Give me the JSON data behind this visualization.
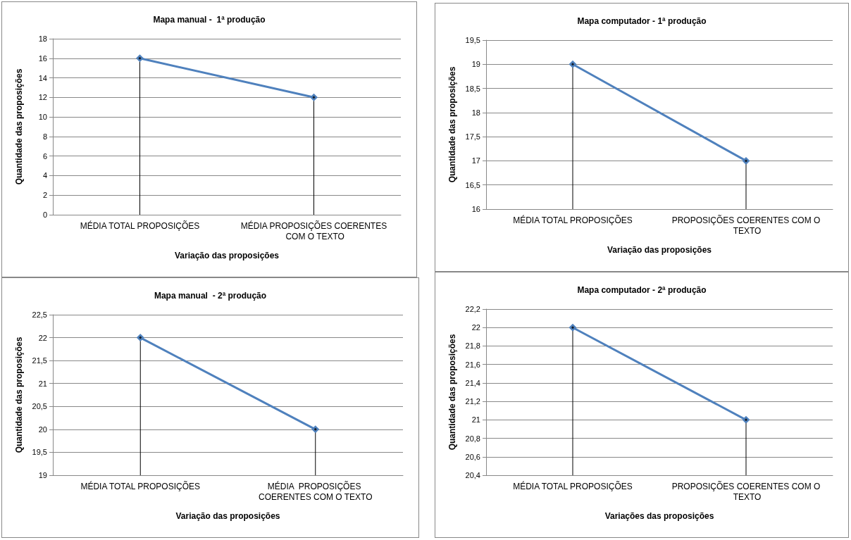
{
  "chart_data": [
    {
      "type": "line",
      "title": "Mapa manual -  1ª produção",
      "xlabel": "Variação das proposições",
      "ylabel": "Quantidade das proposições",
      "categories": [
        "MÉDIA TOTAL PROPOSIÇÕES",
        "MÉDIA PROPOSIÇÕES COERENTES COM O TEXTO"
      ],
      "series": [
        {
          "type": "lollipop",
          "color": "#000000",
          "values": [
            16,
            12
          ]
        },
        {
          "color": "#4f81bd",
          "values": [
            16,
            12
          ]
        }
      ],
      "ylim": [
        0,
        18
      ],
      "yticks": [
        0,
        2,
        4,
        6,
        8,
        10,
        12,
        14,
        16,
        18
      ],
      "grid": "y",
      "marker": "diamond"
    },
    {
      "type": "line",
      "title": "Mapa computador - 1ª produção",
      "xlabel": "Variação das proposições",
      "ylabel": "Quantidade das proposições",
      "categories": [
        "MÉDIA TOTAL PROPOSIÇÕES",
        "PROPOSIÇÕES COERENTES COM O TEXTO"
      ],
      "series": [
        {
          "type": "lollipop",
          "color": "#000000",
          "values": [
            19,
            17
          ]
        },
        {
          "color": "#4f81bd",
          "values": [
            19,
            17
          ]
        }
      ],
      "ylim": [
        16,
        19.5
      ],
      "yticks": [
        16,
        {
          "value": 16.5,
          "label": "16,5"
        },
        17,
        {
          "value": 17.5,
          "label": "17,5"
        },
        18,
        {
          "value": 18.5,
          "label": "18,5"
        },
        19,
        {
          "value": 19.5,
          "label": "19,5"
        }
      ],
      "grid": "y",
      "marker": "diamond"
    },
    {
      "type": "line",
      "title": "Mapa manual  - 2ª produção",
      "xlabel": "Variação das proposições",
      "ylabel": "Quantidade das proposições",
      "categories": [
        "MÉDIA TOTAL PROPOSIÇÕES",
        "MÉDIA  PROPOSIÇÕES COERENTES COM O TEXTO"
      ],
      "series": [
        {
          "type": "lollipop",
          "color": "#000000",
          "values": [
            22,
            20
          ]
        },
        {
          "color": "#4f81bd",
          "values": [
            22,
            20
          ]
        }
      ],
      "ylim": [
        19,
        22.5
      ],
      "yticks": [
        19,
        {
          "value": 19.5,
          "label": "19,5"
        },
        20,
        {
          "value": 20.5,
          "label": "20,5"
        },
        21,
        {
          "value": 21.5,
          "label": "21,5"
        },
        22,
        {
          "value": 22.5,
          "label": "22,5"
        }
      ],
      "grid": "y",
      "marker": "diamond"
    },
    {
      "type": "line",
      "title": "Mapa computador - 2ª produção",
      "xlabel": "Variações das proposições",
      "ylabel": "Quantidade das proposições",
      "categories": [
        "MÉDIA TOTAL PROPOSIÇÕES",
        "PROPOSIÇÕES COERENTES COM O TEXTO"
      ],
      "series": [
        {
          "type": "lollipop",
          "color": "#000000",
          "values": [
            22,
            21
          ]
        },
        {
          "color": "#4f81bd",
          "values": [
            22,
            21
          ]
        }
      ],
      "ylim": [
        20.4,
        22.2
      ],
      "yticks": [
        {
          "value": 20.4,
          "label": "20,4"
        },
        {
          "value": 20.6,
          "label": "20,6"
        },
        {
          "value": 20.8,
          "label": "20,8"
        },
        21,
        {
          "value": 21.2,
          "label": "21,2"
        },
        {
          "value": 21.4,
          "label": "21,4"
        },
        {
          "value": 21.6,
          "label": "21,6"
        },
        {
          "value": 21.8,
          "label": "21,8"
        },
        22,
        {
          "value": 22.2,
          "label": "22,2"
        }
      ],
      "grid": "y",
      "marker": "diamond"
    }
  ]
}
